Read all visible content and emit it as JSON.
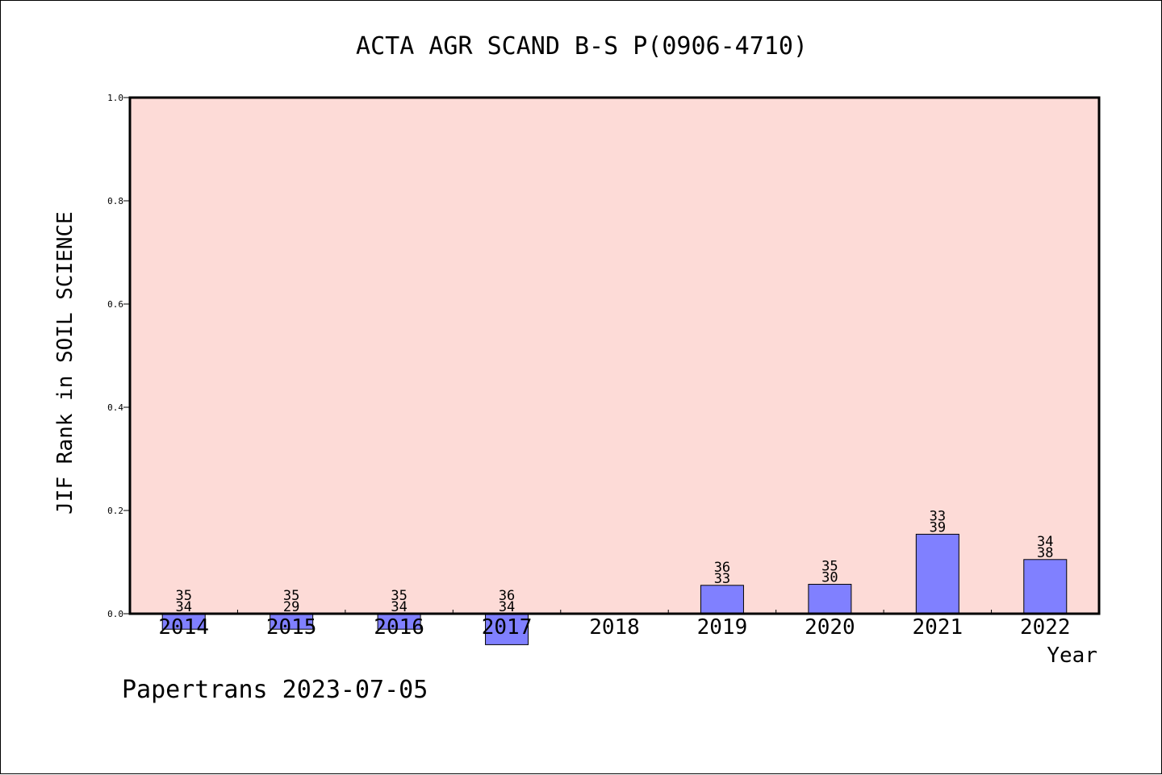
{
  "chart_data": {
    "type": "bar",
    "title": "ACTA AGR SCAND B-S P(0906-4710)",
    "xlabel": "Year",
    "ylabel": "JIF Rank in SOIL SCIENCE",
    "ylim": [
      0.0,
      1.0
    ],
    "yticks": [
      "0.0",
      "0.2",
      "0.4",
      "0.6",
      "0.8",
      "1.0"
    ],
    "categories": [
      "2014",
      "2015",
      "2016",
      "2017",
      "2018",
      "2019",
      "2020",
      "2021",
      "2022"
    ],
    "values": [
      -0.03,
      -0.03,
      -0.03,
      -0.06,
      null,
      0.055,
      0.057,
      0.154,
      0.105
    ],
    "rank_labels": [
      [
        "35",
        "34"
      ],
      [
        "35",
        "29"
      ],
      [
        "35",
        "34"
      ],
      [
        "36",
        "34"
      ],
      [],
      [
        "36",
        "33"
      ],
      [
        "35",
        "30"
      ],
      [
        "33",
        "39"
      ],
      [
        "34",
        "38"
      ]
    ],
    "grid": false,
    "colors": {
      "bar": "#8080ff",
      "plot_bg": "#fddbd7",
      "axis": "#000000"
    }
  },
  "footer": {
    "credit": "Papertrans 2023-07-05"
  }
}
